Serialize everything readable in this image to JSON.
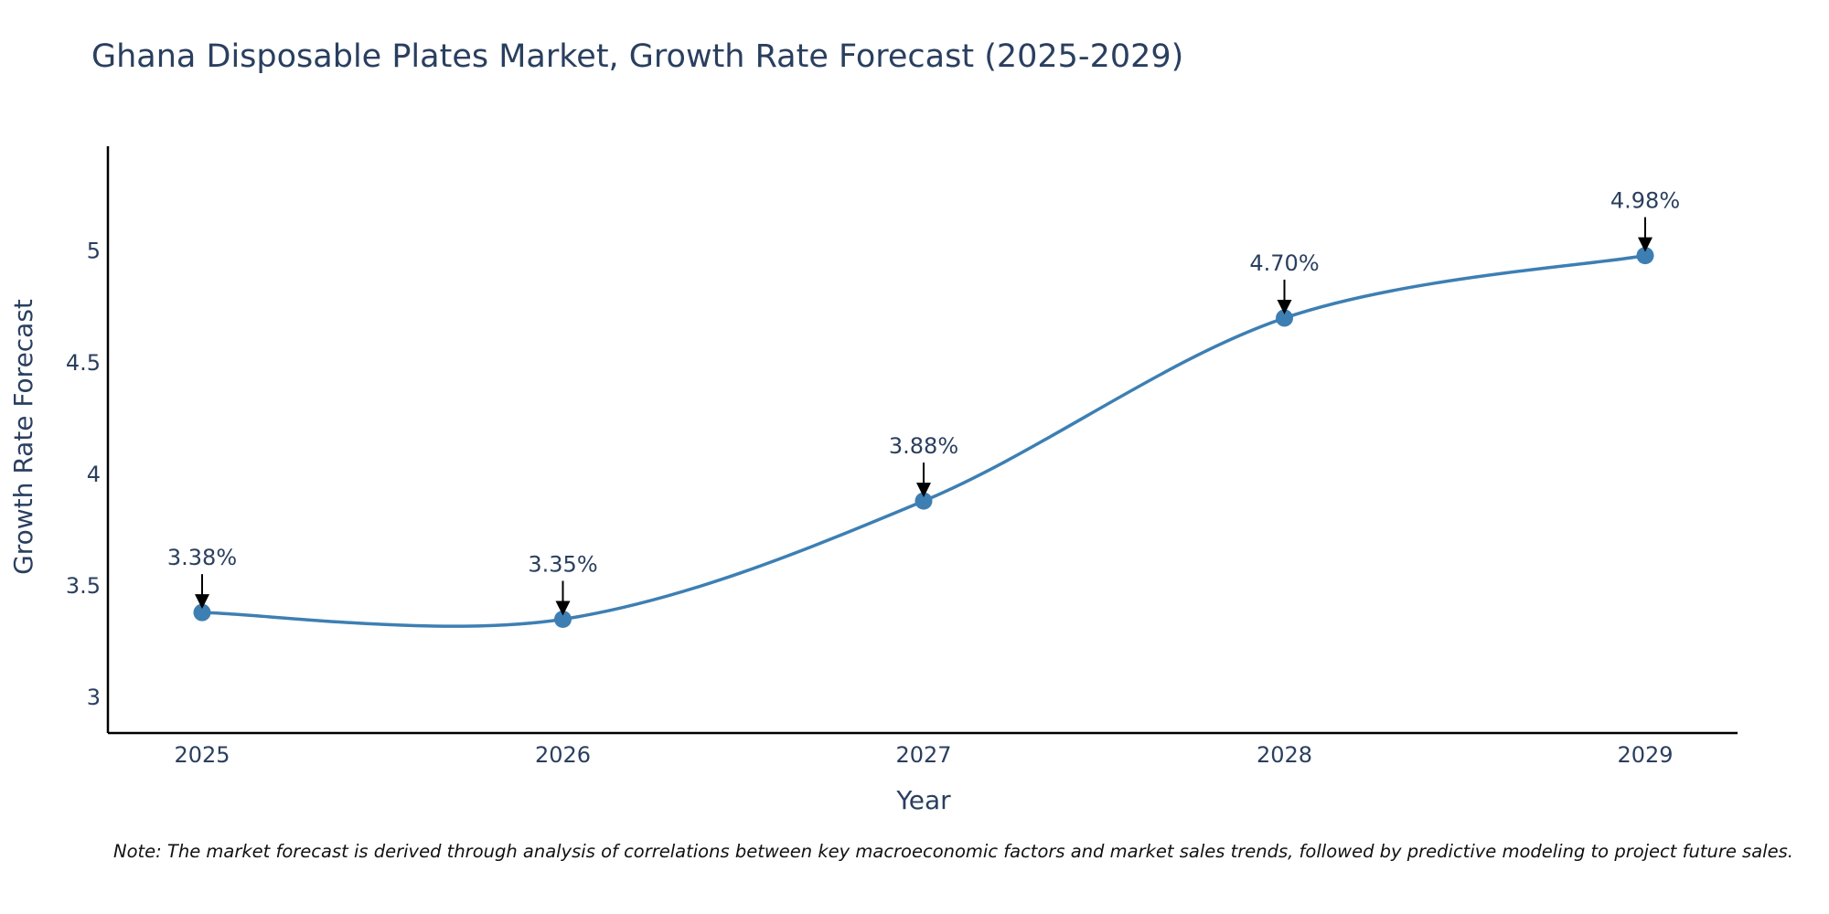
{
  "chart_data": {
    "type": "line",
    "title": "Ghana Disposable Plates Market, Growth Rate Forecast (2025-2029)",
    "xlabel": "Year",
    "ylabel": "Growth Rate Forecast",
    "categories": [
      "2025",
      "2026",
      "2027",
      "2028",
      "2029"
    ],
    "series": [
      {
        "name": "Growth Rate Forecast",
        "values": [
          3.38,
          3.35,
          3.88,
          4.7,
          4.98
        ],
        "color": "#3d7fb3"
      }
    ],
    "annotations": [
      "3.38%",
      "3.35%",
      "3.88%",
      "4.70%",
      "4.98%"
    ],
    "yticks": [
      3,
      3.5,
      4,
      4.5,
      5
    ],
    "ytick_labels": [
      "3",
      "3.5",
      "4",
      "4.5",
      "5"
    ],
    "ylim": [
      2.84,
      5.47
    ],
    "grid": false,
    "note": "Note: The market forecast is derived through analysis of correlations between key macroeconomic factors and market sales trends, followed by predictive modeling to project future sales."
  }
}
